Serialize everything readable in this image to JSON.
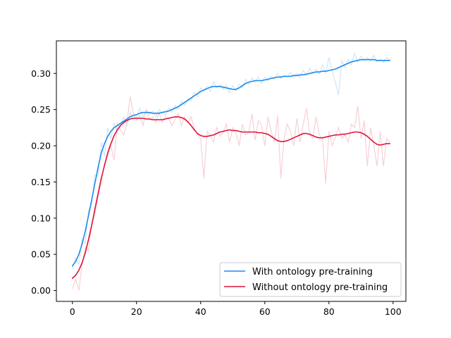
{
  "chart_data": {
    "type": "line",
    "title": "",
    "xlabel": "",
    "ylabel": "",
    "xlim": [
      -5,
      104
    ],
    "ylim": [
      -0.015,
      0.345
    ],
    "x_ticks": [
      0,
      20,
      40,
      60,
      80,
      100
    ],
    "x_tick_labels": [
      "0",
      "20",
      "40",
      "60",
      "80",
      "100"
    ],
    "y_ticks": [
      0.0,
      0.05,
      0.1,
      0.15,
      0.2,
      0.25,
      0.3
    ],
    "y_tick_labels": [
      "0.00",
      "0.05",
      "0.10",
      "0.15",
      "0.20",
      "0.25",
      "0.30"
    ],
    "grid": false,
    "legend_position": "lower right",
    "x": [
      0,
      1,
      2,
      3,
      4,
      5,
      6,
      7,
      8,
      9,
      10,
      11,
      12,
      13,
      14,
      15,
      16,
      17,
      18,
      19,
      20,
      21,
      22,
      23,
      24,
      25,
      26,
      27,
      28,
      29,
      30,
      31,
      32,
      33,
      34,
      35,
      36,
      37,
      38,
      39,
      40,
      41,
      42,
      43,
      44,
      45,
      46,
      47,
      48,
      49,
      50,
      51,
      52,
      53,
      54,
      55,
      56,
      57,
      58,
      59,
      60,
      61,
      62,
      63,
      64,
      65,
      66,
      67,
      68,
      69,
      70,
      71,
      72,
      73,
      74,
      75,
      76,
      77,
      78,
      79,
      80,
      81,
      82,
      83,
      84,
      85,
      86,
      87,
      88,
      89,
      90,
      91,
      92,
      93,
      94,
      95,
      96,
      97,
      98,
      99
    ],
    "series": [
      {
        "name": "With ontology pre-training",
        "color": "#1f8ceb",
        "raw_color": "#cfe6fb",
        "smoothed": [
          0.034,
          0.04,
          0.05,
          0.064,
          0.082,
          0.103,
          0.125,
          0.148,
          0.17,
          0.19,
          0.203,
          0.213,
          0.22,
          0.225,
          0.228,
          0.231,
          0.234,
          0.237,
          0.24,
          0.242,
          0.243,
          0.245,
          0.246,
          0.246,
          0.246,
          0.245,
          0.245,
          0.245,
          0.246,
          0.247,
          0.248,
          0.25,
          0.252,
          0.254,
          0.257,
          0.26,
          0.263,
          0.266,
          0.269,
          0.272,
          0.275,
          0.277,
          0.279,
          0.281,
          0.282,
          0.282,
          0.282,
          0.281,
          0.28,
          0.279,
          0.278,
          0.278,
          0.28,
          0.283,
          0.286,
          0.288,
          0.289,
          0.29,
          0.29,
          0.29,
          0.291,
          0.292,
          0.293,
          0.294,
          0.295,
          0.295,
          0.296,
          0.296,
          0.296,
          0.297,
          0.297,
          0.298,
          0.298,
          0.299,
          0.3,
          0.301,
          0.302,
          0.302,
          0.303,
          0.303,
          0.304,
          0.305,
          0.306,
          0.308,
          0.31,
          0.312,
          0.314,
          0.316,
          0.317,
          0.318,
          0.319,
          0.319,
          0.319,
          0.319,
          0.319,
          0.318,
          0.318,
          0.318,
          0.318,
          0.318
        ],
        "raw": [
          0.03,
          0.045,
          0.036,
          0.072,
          0.065,
          0.11,
          0.12,
          0.16,
          0.158,
          0.205,
          0.185,
          0.225,
          0.21,
          0.232,
          0.218,
          0.226,
          0.24,
          0.228,
          0.246,
          0.236,
          0.24,
          0.252,
          0.24,
          0.25,
          0.243,
          0.248,
          0.24,
          0.25,
          0.246,
          0.242,
          0.252,
          0.246,
          0.256,
          0.25,
          0.262,
          0.256,
          0.265,
          0.262,
          0.274,
          0.268,
          0.28,
          0.276,
          0.282,
          0.275,
          0.289,
          0.28,
          0.285,
          0.278,
          0.284,
          0.273,
          0.283,
          0.276,
          0.285,
          0.28,
          0.292,
          0.285,
          0.294,
          0.288,
          0.295,
          0.286,
          0.295,
          0.29,
          0.296,
          0.292,
          0.3,
          0.293,
          0.298,
          0.295,
          0.301,
          0.296,
          0.3,
          0.294,
          0.304,
          0.297,
          0.307,
          0.3,
          0.306,
          0.299,
          0.312,
          0.3,
          0.322,
          0.303,
          0.288,
          0.27,
          0.318,
          0.308,
          0.32,
          0.312,
          0.328,
          0.316,
          0.324,
          0.318,
          0.322,
          0.317,
          0.325,
          0.316,
          0.32,
          0.315,
          0.322,
          0.318
        ]
      },
      {
        "name": "Without ontology pre-training",
        "color": "#dc143c",
        "raw_color": "#f7d0d6",
        "smoothed": [
          0.017,
          0.021,
          0.028,
          0.038,
          0.052,
          0.07,
          0.09,
          0.112,
          0.134,
          0.155,
          0.173,
          0.19,
          0.203,
          0.214,
          0.222,
          0.228,
          0.232,
          0.235,
          0.237,
          0.238,
          0.238,
          0.238,
          0.238,
          0.237,
          0.237,
          0.236,
          0.236,
          0.236,
          0.236,
          0.237,
          0.238,
          0.239,
          0.24,
          0.24,
          0.239,
          0.237,
          0.233,
          0.228,
          0.222,
          0.217,
          0.214,
          0.213,
          0.213,
          0.214,
          0.215,
          0.217,
          0.219,
          0.22,
          0.221,
          0.222,
          0.221,
          0.221,
          0.22,
          0.219,
          0.219,
          0.219,
          0.219,
          0.219,
          0.218,
          0.218,
          0.217,
          0.216,
          0.213,
          0.21,
          0.207,
          0.206,
          0.206,
          0.207,
          0.209,
          0.211,
          0.213,
          0.215,
          0.217,
          0.217,
          0.216,
          0.214,
          0.212,
          0.211,
          0.211,
          0.212,
          0.213,
          0.214,
          0.215,
          0.215,
          0.216,
          0.216,
          0.217,
          0.218,
          0.219,
          0.219,
          0.218,
          0.216,
          0.213,
          0.209,
          0.205,
          0.202,
          0.201,
          0.202,
          0.203,
          0.203
        ],
        "raw": [
          0.002,
          0.016,
          0.0,
          0.035,
          0.06,
          0.055,
          0.09,
          0.105,
          0.128,
          0.15,
          0.175,
          0.185,
          0.2,
          0.18,
          0.232,
          0.222,
          0.215,
          0.232,
          0.268,
          0.245,
          0.236,
          0.242,
          0.228,
          0.25,
          0.236,
          0.24,
          0.232,
          0.246,
          0.232,
          0.24,
          0.238,
          0.228,
          0.236,
          0.245,
          0.228,
          0.24,
          0.232,
          0.24,
          0.225,
          0.215,
          0.21,
          0.155,
          0.22,
          0.215,
          0.205,
          0.225,
          0.213,
          0.218,
          0.23,
          0.205,
          0.225,
          0.218,
          0.2,
          0.23,
          0.215,
          0.218,
          0.244,
          0.208,
          0.235,
          0.228,
          0.2,
          0.24,
          0.22,
          0.205,
          0.242,
          0.155,
          0.21,
          0.23,
          0.22,
          0.2,
          0.238,
          0.205,
          0.23,
          0.252,
          0.215,
          0.21,
          0.24,
          0.215,
          0.21,
          0.148,
          0.22,
          0.2,
          0.212,
          0.225,
          0.21,
          0.215,
          0.205,
          0.23,
          0.225,
          0.255,
          0.21,
          0.235,
          0.172,
          0.225,
          0.2,
          0.172,
          0.22,
          0.172,
          0.21,
          0.205
        ]
      }
    ]
  }
}
